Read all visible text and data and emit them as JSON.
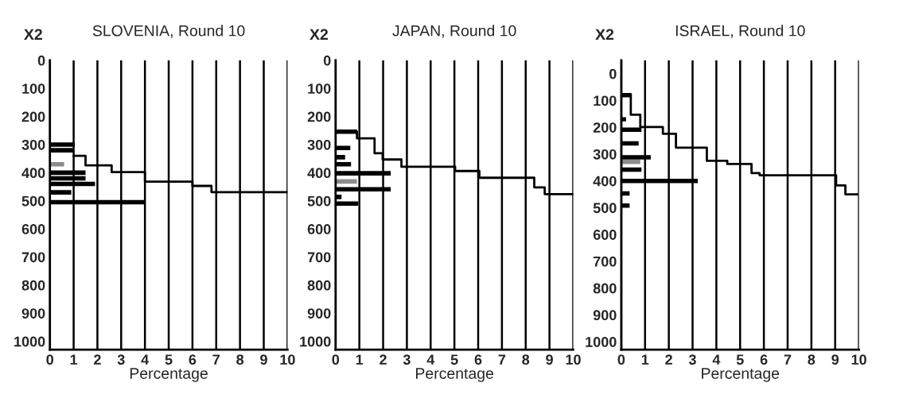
{
  "chart_data": [
    {
      "type": "bar",
      "orientation": "horizontal",
      "title": "SLOVENIA, Round 10",
      "xlabel": "Percentage",
      "ylabel": "X2",
      "xlim": [
        0,
        10
      ],
      "xticks": [
        0,
        1,
        2,
        3,
        4,
        5,
        6,
        7,
        8,
        9,
        10
      ],
      "ylim": [
        1030,
        0
      ],
      "yticks": [
        0,
        100,
        200,
        300,
        400,
        500,
        600,
        700,
        800,
        900,
        1000
      ],
      "grid": "x",
      "series": [
        {
          "color": "#000000",
          "x": [
            300,
            320,
            400,
            420,
            440,
            470,
            505
          ],
          "values": [
            1.05,
            1.0,
            1.5,
            1.5,
            1.9,
            0.9,
            4.0
          ]
        },
        {
          "color": "#8c8c8c",
          "x": [
            370
          ],
          "values": [
            0.6
          ]
        },
        {
          "type": "line",
          "color": "#000000",
          "x": [
            340,
            340,
            374,
            374,
            398,
            398,
            432,
            432,
            447,
            447,
            469,
            469
          ],
          "values": [
            1.0,
            1.5,
            1.5,
            2.6,
            2.6,
            4.0,
            4.0,
            6.0,
            6.0,
            6.8,
            6.8,
            10
          ]
        }
      ]
    },
    {
      "type": "bar",
      "orientation": "horizontal",
      "title": "JAPAN, Round 10",
      "xlabel": "Percentage",
      "ylabel": "X2",
      "xlim": [
        0,
        10
      ],
      "xticks": [
        0,
        1,
        2,
        3,
        4,
        5,
        6,
        7,
        8,
        9,
        10
      ],
      "ylim": [
        1030,
        0
      ],
      "yticks": [
        0,
        100,
        200,
        300,
        400,
        500,
        600,
        700,
        800,
        900,
        1000
      ],
      "grid": "x",
      "series": [
        {
          "color": "#000000",
          "x": [
            254,
            312,
            345,
            370,
            402,
            459,
            486,
            510
          ],
          "values": [
            0.9,
            0.62,
            0.4,
            0.65,
            2.32,
            2.32,
            0.25,
            0.95
          ]
        },
        {
          "color": "#8c8c8c",
          "x": [
            431
          ],
          "values": [
            0.9
          ]
        },
        {
          "type": "line",
          "color": "#000000",
          "x": [
            254,
            278,
            278,
            331,
            331,
            353,
            353,
            379,
            379,
            394,
            394,
            418,
            418,
            452,
            452,
            476,
            476
          ],
          "values": [
            0.9,
            0.9,
            1.64,
            1.64,
            1.98,
            1.98,
            2.77,
            2.77,
            5.03,
            5.03,
            6.05,
            6.05,
            8.36,
            8.36,
            8.8,
            8.8,
            10
          ]
        }
      ]
    },
    {
      "type": "bar",
      "orientation": "horizontal",
      "title": "ISRAEL, Round 10",
      "xlabel": "Percentage",
      "ylabel": "X2",
      "xlim": [
        0,
        10
      ],
      "xticks": [
        0,
        1,
        2,
        3,
        4,
        5,
        6,
        7,
        8,
        9,
        10
      ],
      "ylim": [
        1030,
        -50
      ],
      "yticks": [
        0,
        100,
        200,
        300,
        400,
        500,
        600,
        700,
        800,
        900,
        1000
      ],
      "grid": "x",
      "series": [
        {
          "color": "#000000",
          "x": [
            80,
            170,
            209,
            260,
            312,
            358,
            400,
            447,
            492
          ],
          "values": [
            0.4,
            0.2,
            0.85,
            0.73,
            1.24,
            0.85,
            3.22,
            0.35,
            0.35
          ]
        },
        {
          "color": "#8c8c8c",
          "x": [
            329
          ],
          "values": [
            0.8
          ]
        },
        {
          "type": "line",
          "color": "#000000",
          "x": [
            77,
            153,
            153,
            199,
            199,
            224,
            224,
            276,
            276,
            325,
            325,
            337,
            337,
            371,
            371,
            379,
            379,
            417,
            417,
            450,
            450
          ],
          "values": [
            0.4,
            0.4,
            0.8,
            0.8,
            1.75,
            1.75,
            2.3,
            2.3,
            3.6,
            3.6,
            4.46,
            4.46,
            5.48,
            5.48,
            5.82,
            5.82,
            9.04,
            9.04,
            9.43,
            9.43,
            9.94
          ]
        }
      ]
    }
  ]
}
